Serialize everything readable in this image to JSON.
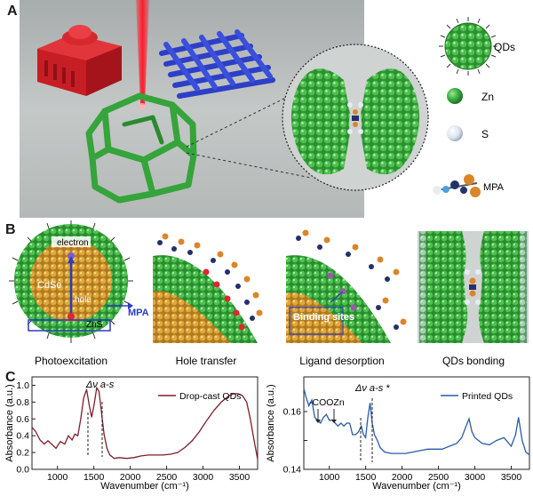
{
  "panels": {
    "a": {
      "letter": "A",
      "legend": {
        "qds": "QDs",
        "zn": "Zn",
        "s": "S",
        "mpa": "MPA"
      }
    },
    "b": {
      "letter": "B",
      "labels": {
        "electron": "electron",
        "cdse": "CdSe",
        "hole": "hole",
        "zns": "ZnS",
        "mpa": "MPA",
        "binding": "Binding sites"
      },
      "captions": [
        "Photoexcitation",
        "Hole transfer",
        "Ligand desorption",
        "QDs bonding"
      ]
    },
    "c": {
      "letter": "C"
    }
  },
  "colors": {
    "zn_green": "#3cb043",
    "s_white": "#e6ecf2",
    "cdse_orange": "#e0a93a",
    "curve_red": "#7a1f2b",
    "curve_blue": "#2a5aa8",
    "bg_gray": "#b9bdbd"
  },
  "chart_data": [
    {
      "type": "line",
      "ylabel": "Absorbance (a.u.)",
      "xlabel": "Wavenumber (cm⁻¹)",
      "xlim": [
        650,
        3750
      ],
      "ylim": [
        0.0,
        1.1
      ],
      "xticks": [
        1000,
        1500,
        2000,
        2500,
        3000,
        3500
      ],
      "yticks": [
        0.0,
        0.2,
        0.4,
        0.6,
        0.8,
        1.0
      ],
      "ytick_labels": [
        "0.0",
        "0.2",
        "0.4",
        "0.6",
        "0.8",
        "1.0"
      ],
      "annotations": [
        "Δν a-s"
      ],
      "series": [
        {
          "name": "Drop-cast QDs",
          "color": "#7a1f2b",
          "x": [
            650,
            700,
            760,
            820,
            870,
            920,
            980,
            1040,
            1100,
            1150,
            1200,
            1240,
            1280,
            1320,
            1360,
            1400,
            1440,
            1470,
            1500,
            1540,
            1570,
            1600,
            1640,
            1680,
            1720,
            1780,
            1850,
            1950,
            2050,
            2150,
            2250,
            2350,
            2450,
            2550,
            2650,
            2750,
            2850,
            2950,
            3050,
            3150,
            3250,
            3350,
            3420,
            3480,
            3540,
            3600,
            3650,
            3700,
            3750
          ],
          "y": [
            0.5,
            0.45,
            0.35,
            0.3,
            0.34,
            0.3,
            0.25,
            0.33,
            0.3,
            0.4,
            0.35,
            0.42,
            0.4,
            0.6,
            0.85,
            0.95,
            0.75,
            0.62,
            0.75,
            0.97,
            0.93,
            0.72,
            0.42,
            0.25,
            0.17,
            0.13,
            0.14,
            0.13,
            0.14,
            0.16,
            0.17,
            0.17,
            0.17,
            0.18,
            0.2,
            0.26,
            0.34,
            0.45,
            0.58,
            0.7,
            0.8,
            0.87,
            0.9,
            0.9,
            0.88,
            0.8,
            0.6,
            0.35,
            0.12
          ]
        }
      ]
    },
    {
      "type": "line",
      "ylabel": "Absorbance (a.u.)",
      "xlabel": "Wavenumber (cm⁻¹)",
      "xlim": [
        650,
        3750
      ],
      "ylim": [
        0.14,
        0.172
      ],
      "xticks": [
        1000,
        1500,
        2000,
        2500,
        3000,
        3500
      ],
      "yticks": [
        0.14,
        0.15,
        0.16
      ],
      "ytick_labels": [
        "0.14",
        "",
        "0.16"
      ],
      "annotations": [
        "-COOZn",
        "Δν a-s *"
      ],
      "series": [
        {
          "name": "Printed QDs",
          "color": "#2a5aa8",
          "x": [
            650,
            680,
            720,
            760,
            800,
            840,
            880,
            920,
            960,
            1000,
            1040,
            1080,
            1120,
            1160,
            1200,
            1240,
            1280,
            1320,
            1360,
            1400,
            1440,
            1470,
            1500,
            1530,
            1560,
            1590,
            1620,
            1660,
            1700,
            1760,
            1850,
            1950,
            2050,
            2150,
            2250,
            2350,
            2450,
            2550,
            2650,
            2750,
            2820,
            2880,
            2920,
            2960,
            3000,
            3050,
            3100,
            3200,
            3300,
            3400,
            3500,
            3560,
            3600,
            3650,
            3700,
            3750
          ],
          "y": [
            0.168,
            0.165,
            0.162,
            0.164,
            0.158,
            0.157,
            0.156,
            0.158,
            0.159,
            0.157,
            0.157,
            0.156,
            0.155,
            0.156,
            0.155,
            0.156,
            0.156,
            0.152,
            0.152,
            0.153,
            0.155,
            0.152,
            0.151,
            0.158,
            0.163,
            0.156,
            0.152,
            0.15,
            0.1475,
            0.146,
            0.1455,
            0.1455,
            0.1455,
            0.146,
            0.1465,
            0.147,
            0.147,
            0.147,
            0.148,
            0.149,
            0.151,
            0.155,
            0.1575,
            0.153,
            0.151,
            0.15,
            0.149,
            0.1485,
            0.15,
            0.151,
            0.148,
            0.152,
            0.158,
            0.15,
            0.146,
            0.145
          ]
        }
      ]
    }
  ]
}
